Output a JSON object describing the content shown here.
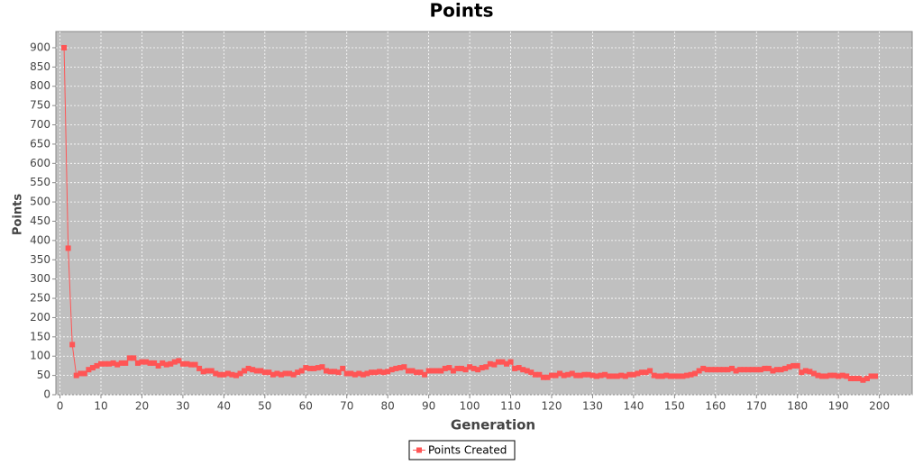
{
  "chart_data": {
    "type": "line",
    "title": "Points",
    "x_label": "Generation",
    "y_label": "Points",
    "x": [
      1,
      2,
      3,
      4,
      5,
      6,
      7,
      8,
      9,
      10,
      11,
      12,
      13,
      14,
      15,
      16,
      17,
      18,
      19,
      20,
      21,
      22,
      23,
      24,
      25,
      26,
      27,
      28,
      29,
      30,
      31,
      32,
      33,
      34,
      35,
      36,
      37,
      38,
      39,
      40,
      41,
      42,
      43,
      44,
      45,
      46,
      47,
      48,
      49,
      50,
      51,
      52,
      53,
      54,
      55,
      56,
      57,
      58,
      59,
      60,
      61,
      62,
      63,
      64,
      65,
      66,
      67,
      68,
      69,
      70,
      71,
      72,
      73,
      74,
      75,
      76,
      77,
      78,
      79,
      80,
      81,
      82,
      83,
      84,
      85,
      86,
      87,
      88,
      89,
      90,
      91,
      92,
      93,
      94,
      95,
      96,
      97,
      98,
      99,
      100,
      101,
      102,
      103,
      104,
      105,
      106,
      107,
      108,
      109,
      110,
      111,
      112,
      113,
      114,
      115,
      116,
      117,
      118,
      119,
      120,
      121,
      122,
      123,
      124,
      125,
      126,
      127,
      128,
      129,
      130,
      131,
      132,
      133,
      134,
      135,
      136,
      137,
      138,
      139,
      140,
      141,
      142,
      143,
      144,
      145,
      146,
      147,
      148,
      149,
      150,
      151,
      152,
      153,
      154,
      155,
      156,
      157,
      158,
      159,
      160,
      161,
      162,
      163,
      164,
      165,
      166,
      167,
      168,
      169,
      170,
      171,
      172,
      173,
      174,
      175,
      176,
      177,
      178,
      179,
      180,
      181,
      182,
      183,
      184,
      185,
      186,
      187,
      188,
      189,
      190,
      191,
      192,
      193,
      194,
      195,
      196,
      197,
      198,
      199
    ],
    "series": [
      {
        "name": "Points Created",
        "color": "#ff5555",
        "values": [
          900,
          380,
          130,
          50,
          55,
          55,
          65,
          70,
          75,
          80,
          80,
          80,
          82,
          78,
          82,
          82,
          95,
          95,
          82,
          85,
          85,
          82,
          82,
          75,
          82,
          78,
          80,
          85,
          88,
          80,
          80,
          78,
          78,
          68,
          60,
          62,
          62,
          55,
          52,
          52,
          55,
          52,
          50,
          55,
          62,
          68,
          65,
          62,
          62,
          58,
          58,
          52,
          55,
          52,
          55,
          55,
          52,
          58,
          62,
          70,
          68,
          68,
          70,
          72,
          62,
          60,
          60,
          58,
          68,
          55,
          55,
          52,
          55,
          52,
          55,
          58,
          58,
          60,
          58,
          60,
          65,
          68,
          70,
          72,
          62,
          62,
          58,
          58,
          52,
          62,
          62,
          62,
          62,
          68,
          70,
          62,
          68,
          68,
          65,
          72,
          68,
          65,
          70,
          72,
          80,
          78,
          85,
          85,
          80,
          85,
          68,
          70,
          65,
          62,
          58,
          52,
          52,
          45,
          45,
          50,
          50,
          55,
          50,
          52,
          55,
          50,
          50,
          52,
          52,
          50,
          48,
          50,
          52,
          48,
          48,
          48,
          50,
          48,
          52,
          52,
          55,
          58,
          58,
          62,
          50,
          48,
          48,
          50,
          48,
          48,
          48,
          48,
          50,
          52,
          55,
          62,
          68,
          65,
          65,
          65,
          65,
          65,
          65,
          68,
          62,
          65,
          65,
          65,
          65,
          65,
          65,
          68,
          68,
          62,
          65,
          65,
          68,
          72,
          75,
          75,
          58,
          62,
          60,
          55,
          50,
          48,
          48,
          50,
          50,
          48,
          50,
          48,
          42,
          42,
          42,
          38,
          42,
          48,
          48
        ]
      }
    ],
    "xlim": [
      -1,
      208
    ],
    "xticks": [
      0,
      10,
      20,
      30,
      40,
      50,
      60,
      70,
      80,
      90,
      100,
      110,
      120,
      130,
      140,
      150,
      160,
      170,
      180,
      190,
      200
    ],
    "ylim": [
      0,
      942
    ],
    "yticks": [
      0,
      50,
      100,
      150,
      200,
      250,
      300,
      350,
      400,
      450,
      500,
      550,
      600,
      650,
      700,
      750,
      800,
      850,
      900
    ],
    "grid": true,
    "legend": "bottom",
    "background": "#c0c0c0"
  }
}
